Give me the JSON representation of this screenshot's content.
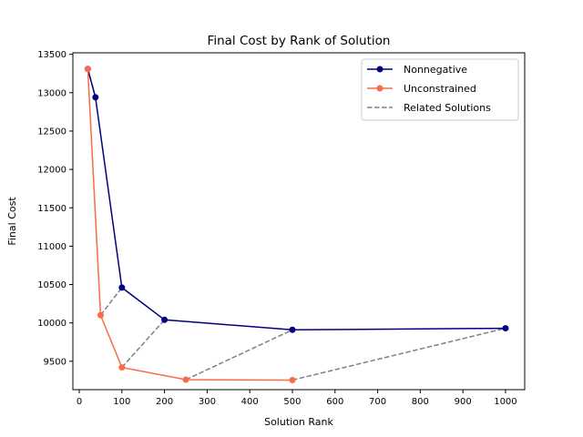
{
  "chart_data": {
    "type": "line",
    "title": "Final Cost by Rank of Solution",
    "xlabel": "Solution Rank",
    "ylabel": "Final Cost",
    "xlim": [
      -15,
      1045
    ],
    "ylim": [
      9130,
      13520
    ],
    "xticks": [
      0,
      100,
      200,
      300,
      400,
      500,
      600,
      700,
      800,
      900,
      1000
    ],
    "yticks": [
      9500,
      10000,
      10500,
      11000,
      11500,
      12000,
      12500,
      13000,
      13500
    ],
    "grid": false,
    "legend_position": "top-right",
    "series": [
      {
        "name": "Nonnegative",
        "color": "#000080",
        "style": "solid",
        "marker": "circle",
        "x": [
          20,
          38,
          100,
          200,
          500,
          1000
        ],
        "y": [
          13310,
          12940,
          10460,
          10040,
          9910,
          9930
        ]
      },
      {
        "name": "Unconstrained",
        "color": "#f96b4b",
        "style": "solid",
        "marker": "circle",
        "x": [
          20,
          50,
          100,
          250,
          500
        ],
        "y": [
          13310,
          10100,
          9420,
          9260,
          9255
        ]
      },
      {
        "name": "Related Solutions",
        "color": "#808080",
        "style": "dashed",
        "marker": "none",
        "segments": [
          {
            "x": [
              20,
              38
            ],
            "y": [
              13310,
              12940
            ]
          },
          {
            "x": [
              50,
              100
            ],
            "y": [
              10100,
              10460
            ]
          },
          {
            "x": [
              100,
              200
            ],
            "y": [
              9420,
              10040
            ]
          },
          {
            "x": [
              250,
              500
            ],
            "y": [
              9260,
              9910
            ]
          },
          {
            "x": [
              500,
              1000
            ],
            "y": [
              9255,
              9930
            ]
          }
        ]
      }
    ]
  }
}
